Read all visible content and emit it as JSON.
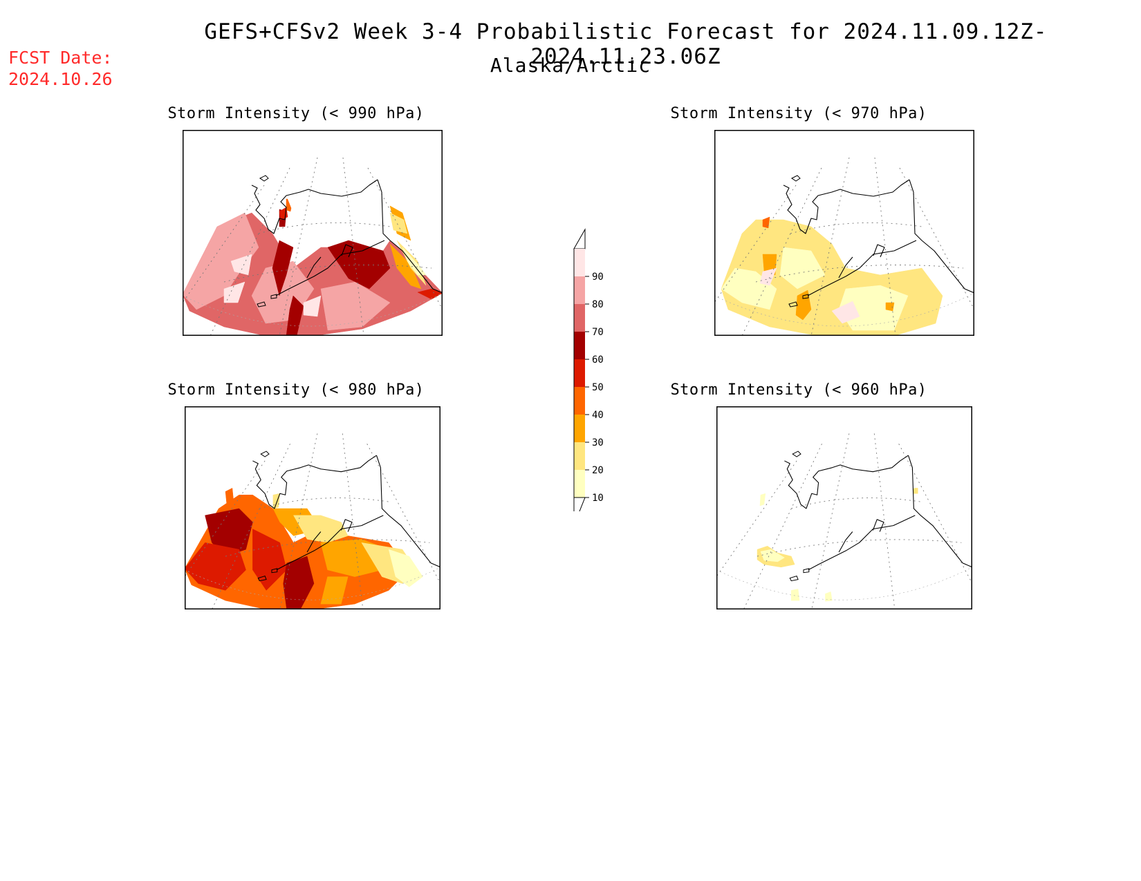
{
  "header": {
    "title": "GEFS+CFSv2 Week 3-4 Probabilistic Forecast for 2024.11.09.12Z-2024.11.23.06Z",
    "subtitle": "Alaska/Arctic",
    "fcst_label": "FCST Date:",
    "fcst_date": "2024.10.26"
  },
  "panels": [
    {
      "id": "p990",
      "title": "Storm Intensity (< 990 hPa)",
      "intensity": "high"
    },
    {
      "id": "p970",
      "title": "Storm Intensity (< 970 hPa)",
      "intensity": "low"
    },
    {
      "id": "p980",
      "title": "Storm Intensity (< 980 hPa)",
      "intensity": "medium"
    },
    {
      "id": "p960",
      "title": "Storm Intensity (< 960 hPa)",
      "intensity": "minimal"
    }
  ],
  "colorbar": {
    "levels": [
      "90",
      "80",
      "70",
      "60",
      "50",
      "40",
      "30",
      "20",
      "10"
    ],
    "colors": [
      "#ffe6e6",
      "#f5a5a5",
      "#e06666",
      "#a30000",
      "#dd1a00",
      "#ff6600",
      "#ffa500",
      "#ffe680",
      "#ffffc0"
    ]
  }
}
